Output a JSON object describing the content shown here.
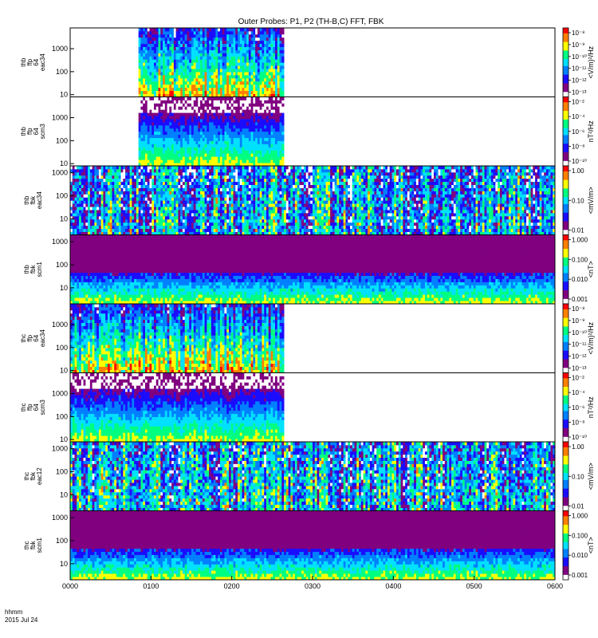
{
  "chart_data": {
    "type": "heatmap",
    "title": "Outer Probes: P1, P2 (TH-B,C) FFT, FBK",
    "x_axis": {
      "ticks": [
        "0000",
        "0100",
        "0200",
        "0300",
        "0400",
        "0500",
        "0600"
      ],
      "range_hours": [
        0,
        6
      ],
      "label_line1": "hhmm",
      "label_line2": "2015 Jul 24"
    },
    "colormap": [
      "#ffffff",
      "#800080",
      "#1a0dff",
      "#0080ff",
      "#00e0ff",
      "#00ff80",
      "#ffff00",
      "#ff8000",
      "#ff0000"
    ],
    "panels": [
      {
        "id": "thb_ffp_eac34",
        "ylabel": [
          "thb",
          "ffp",
          "64",
          "eac34"
        ],
        "yticks": [
          "1000",
          "100",
          "10"
        ],
        "y_scale": "log",
        "y_range": [
          8,
          8000
        ],
        "data_x_range": [
          0.85,
          2.65
        ],
        "cbar_label": "<V/m)²/Hz",
        "cbar_ticks": [
          "10⁻⁸",
          "10⁻⁹",
          "10⁻¹⁰",
          "10⁻¹¹",
          "10⁻¹²",
          "10⁻¹³"
        ],
        "pattern": "efield_fft"
      },
      {
        "id": "thb_ffp_scm3",
        "ylabel": [
          "thb",
          "ffp",
          "64",
          "scm3"
        ],
        "yticks": [
          "1000",
          "100",
          "10"
        ],
        "y_scale": "log",
        "y_range": [
          8,
          8000
        ],
        "data_x_range": [
          0.85,
          2.65
        ],
        "cbar_label": "nT²/Hz",
        "cbar_ticks": [
          "10⁻²",
          "10⁻⁴",
          "10⁻⁶",
          "10⁻⁸",
          "10⁻¹⁰"
        ],
        "pattern": "bfield_fft"
      },
      {
        "id": "thb_fbk_eac34",
        "ylabel": [
          "thb",
          "fbk",
          "eac34"
        ],
        "yticks": [
          "1000",
          "100",
          "10"
        ],
        "y_scale": "log",
        "y_range": [
          2,
          2000
        ],
        "data_x_range": [
          0,
          6
        ],
        "cbar_label": "<mV/m>",
        "cbar_ticks": [
          "1.00",
          "0.10",
          "0.01"
        ],
        "pattern": "efield_fbk"
      },
      {
        "id": "thb_fbk_scm1",
        "ylabel": [
          "thb",
          "fbk",
          "scm1"
        ],
        "yticks": [
          "1000",
          "100",
          "10"
        ],
        "y_scale": "log",
        "y_range": [
          2,
          2000
        ],
        "data_x_range": [
          0,
          6
        ],
        "cbar_label": "<nT>",
        "cbar_ticks": [
          "1.000",
          "0.100",
          "0.010",
          "0.001"
        ],
        "pattern": "bfield_fbk"
      },
      {
        "id": "thc_ffp_eac34",
        "ylabel": [
          "thc",
          "ffp",
          "64",
          "eac34"
        ],
        "yticks": [
          "1000",
          "100",
          "10"
        ],
        "y_scale": "log",
        "y_range": [
          8,
          8000
        ],
        "data_x_range": [
          0,
          2.65
        ],
        "cbar_label": "<V/m)²/Hz",
        "cbar_ticks": [
          "10⁻⁸",
          "10⁻⁹",
          "10⁻¹⁰",
          "10⁻¹¹",
          "10⁻¹²",
          "10⁻¹³"
        ],
        "pattern": "efield_fft"
      },
      {
        "id": "thc_ffp_scm3",
        "ylabel": [
          "thc",
          "ffp",
          "64",
          "scm3"
        ],
        "yticks": [
          "1000",
          "100",
          "10"
        ],
        "y_scale": "log",
        "y_range": [
          8,
          8000
        ],
        "data_x_range": [
          0,
          2.65
        ],
        "cbar_label": "nT²/Hz",
        "cbar_ticks": [
          "10⁻²",
          "10⁻⁴",
          "10⁻⁶",
          "10⁻⁸",
          "10⁻¹⁰"
        ],
        "pattern": "bfield_fft"
      },
      {
        "id": "thc_fbk_eac12",
        "ylabel": [
          "thc",
          "fbk",
          "eac12"
        ],
        "yticks": [
          "1000",
          "100",
          "10"
        ],
        "y_scale": "log",
        "y_range": [
          2,
          2000
        ],
        "data_x_range": [
          0,
          6
        ],
        "cbar_label": "<mV/m>",
        "cbar_ticks": [
          "1.00",
          "0.10",
          "0.01"
        ],
        "pattern": "efield_fbk"
      },
      {
        "id": "thc_fbk_scm1",
        "ylabel": [
          "thc",
          "fbk",
          "scm1"
        ],
        "yticks": [
          "1000",
          "100",
          "10"
        ],
        "y_scale": "log",
        "y_range": [
          2,
          2000
        ],
        "data_x_range": [
          0,
          6
        ],
        "cbar_label": "<nT>",
        "cbar_ticks": [
          "1.000",
          "0.100",
          "0.010",
          "0.001"
        ],
        "pattern": "bfield_fbk"
      }
    ]
  }
}
